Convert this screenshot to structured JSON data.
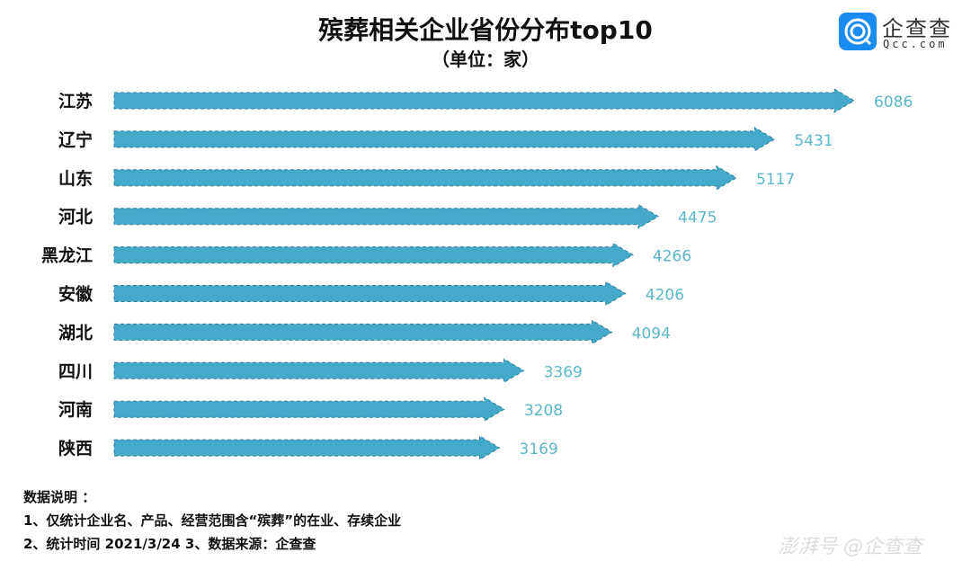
{
  "chart_data": {
    "type": "bar",
    "orientation": "horizontal",
    "title": "殡葬相关企业省份分布top10",
    "subtitle": "（单位：家）",
    "categories": [
      "江苏",
      "辽宁",
      "山东",
      "河北",
      "黑龙江",
      "安徽",
      "湖北",
      "四川",
      "河南",
      "陕西"
    ],
    "values": [
      6086,
      5431,
      5117,
      4475,
      4266,
      4206,
      4094,
      3369,
      3208,
      3169
    ],
    "bar_color": "#45a9c9",
    "label_color": "#5bb8c8",
    "grid": false
  },
  "logo": {
    "name": "企查查",
    "sub": "Qcc.com",
    "color": "#1a8cf0"
  },
  "notes": {
    "heading": "数据说明 ：",
    "line1": "1、仅统计企业名、产品、经营范围含“殡葬”的在业、存续企业",
    "line2": "2、统计时间  2021/3/24     3、数据来源：企查查"
  },
  "watermark": "澎湃号 @企查查"
}
